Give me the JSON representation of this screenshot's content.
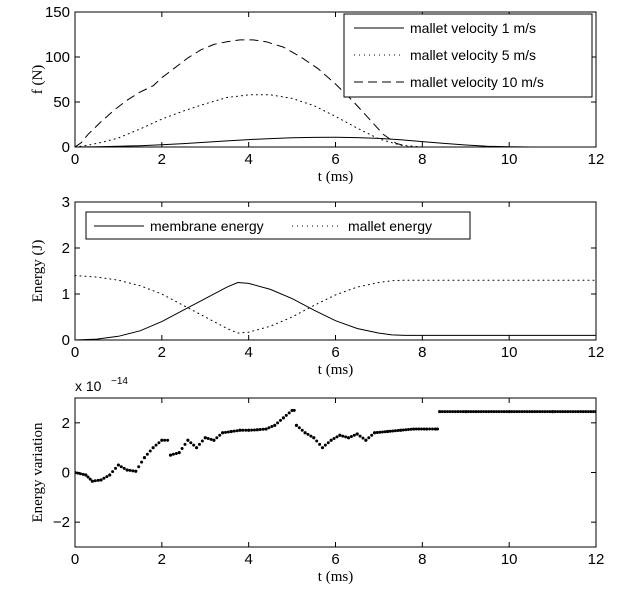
{
  "chart_data": [
    {
      "type": "line",
      "ylabel": "f (N)",
      "xlabel": "t (ms)",
      "xlim": [
        0,
        12
      ],
      "ylim": [
        0,
        150
      ],
      "xticks": [
        0,
        2,
        4,
        6,
        8,
        10,
        12
      ],
      "yticks": [
        0,
        50,
        100,
        150
      ],
      "legend_position": "top-right",
      "series": [
        {
          "name": "mallet velocity 1 m/s",
          "style": "solid",
          "x": [
            0,
            0.5,
            1,
            1.5,
            2,
            2.5,
            3,
            3.5,
            4,
            4.5,
            5,
            5.5,
            6,
            6.5,
            7,
            7.5,
            8,
            8.5,
            9,
            9.5,
            10,
            10.5,
            11,
            12
          ],
          "y": [
            0,
            0.3,
            0.8,
            1.5,
            2.5,
            3.8,
            5.3,
            6.8,
            8.2,
            9.3,
            10.2,
            10.7,
            10.8,
            10.4,
            9.5,
            8.0,
            6.0,
            4.0,
            2.2,
            0.9,
            0.2,
            0,
            0,
            0
          ]
        },
        {
          "name": "mallet velocity 5 m/s",
          "style": "dotted",
          "x": [
            0,
            0.3,
            0.6,
            1,
            1.5,
            2,
            2.5,
            3,
            3.5,
            4,
            4.5,
            5,
            5.5,
            6,
            6.5,
            7,
            7.5,
            8,
            8.5,
            9,
            12
          ],
          "y": [
            0,
            2,
            5,
            10,
            20,
            31,
            40,
            48,
            55,
            58,
            58,
            54,
            46,
            34,
            21,
            9,
            2,
            0,
            0,
            0,
            0
          ]
        },
        {
          "name": "mallet velocity 10 m/s",
          "style": "dashed",
          "x": [
            0,
            0.15,
            0.3,
            0.6,
            0.9,
            1.2,
            1.5,
            1.8,
            2.0,
            2.3,
            2.6,
            2.9,
            3.2,
            3.5,
            3.8,
            4.1,
            4.4,
            4.8,
            5.2,
            5.6,
            6.0,
            6.4,
            6.8,
            7.1,
            7.4,
            7.7,
            8.0,
            12
          ],
          "y": [
            0,
            5,
            14,
            28,
            41,
            52,
            61,
            68,
            77,
            88,
            99,
            108,
            114,
            117,
            119,
            119,
            117,
            111,
            100,
            87,
            70,
            51,
            30,
            14,
            4,
            0,
            0,
            0
          ]
        }
      ]
    },
    {
      "type": "line",
      "ylabel": "Energy (J)",
      "xlabel": "t (ms)",
      "xlim": [
        0,
        12
      ],
      "ylim": [
        0,
        3
      ],
      "xticks": [
        0,
        2,
        4,
        6,
        8,
        10,
        12
      ],
      "yticks": [
        0,
        1,
        2,
        3
      ],
      "legend_position": "top",
      "series": [
        {
          "name": "membrane energy",
          "style": "solid",
          "x": [
            0,
            0.5,
            1,
            1.5,
            2,
            2.5,
            3,
            3.5,
            3.75,
            4,
            4.5,
            5,
            5.5,
            6,
            6.5,
            7,
            7.3,
            7.6,
            8,
            9,
            10,
            11,
            12
          ],
          "y": [
            0,
            0.02,
            0.08,
            0.2,
            0.4,
            0.65,
            0.9,
            1.15,
            1.25,
            1.23,
            1.1,
            0.9,
            0.65,
            0.42,
            0.25,
            0.15,
            0.11,
            0.1,
            0.1,
            0.1,
            0.1,
            0.1,
            0.1
          ]
        },
        {
          "name": "mallet energy",
          "style": "dotted",
          "x": [
            0,
            0.5,
            1,
            1.5,
            2,
            2.5,
            3,
            3.5,
            3.75,
            4,
            4.5,
            5,
            5.5,
            6,
            6.5,
            7,
            7.3,
            7.6,
            8,
            9,
            10,
            11,
            12
          ],
          "y": [
            1.4,
            1.37,
            1.3,
            1.18,
            1.0,
            0.75,
            0.5,
            0.25,
            0.15,
            0.17,
            0.3,
            0.5,
            0.75,
            0.98,
            1.15,
            1.25,
            1.29,
            1.3,
            1.3,
            1.3,
            1.3,
            1.3,
            1.3
          ]
        }
      ]
    },
    {
      "type": "scatter",
      "ylabel": "Energy variation",
      "xlabel": "t (ms)",
      "y_multiplier": "x 10",
      "y_exponent": "−14",
      "xlim": [
        0,
        12
      ],
      "ylim": [
        -3,
        3
      ],
      "xticks": [
        0,
        2,
        4,
        6,
        8,
        10,
        12
      ],
      "yticks": [
        -2,
        0,
        2
      ],
      "series": [
        {
          "marker": "dot",
          "x": [
            0,
            0.25,
            0.4,
            0.6,
            0.8,
            1.0,
            1.2,
            1.4,
            1.6,
            1.8,
            2.0,
            2.2,
            2.4,
            2.6,
            2.8,
            3.0,
            3.2,
            3.4,
            3.6,
            3.8,
            4.0,
            4.2,
            4.4,
            4.6,
            4.8,
            5.0,
            5.1,
            5.3,
            5.5,
            5.7,
            5.9,
            6.1,
            6.3,
            6.5,
            6.7,
            6.9,
            7.2,
            7.5,
            7.8,
            8.1,
            8.3,
            8.4,
            9,
            10,
            11,
            12
          ],
          "y": [
            0,
            -0.1,
            -0.35,
            -0.3,
            -0.1,
            0.3,
            0.1,
            0.05,
            0.6,
            1.0,
            1.3,
            0.7,
            0.8,
            1.3,
            1.0,
            1.4,
            1.3,
            1.6,
            1.65,
            1.7,
            1.7,
            1.72,
            1.75,
            1.9,
            2.2,
            2.5,
            1.9,
            1.6,
            1.4,
            1.0,
            1.3,
            1.5,
            1.4,
            1.55,
            1.3,
            1.6,
            1.65,
            1.7,
            1.75,
            1.75,
            1.75,
            2.45,
            2.45,
            2.45,
            2.45,
            2.45
          ]
        }
      ]
    }
  ]
}
